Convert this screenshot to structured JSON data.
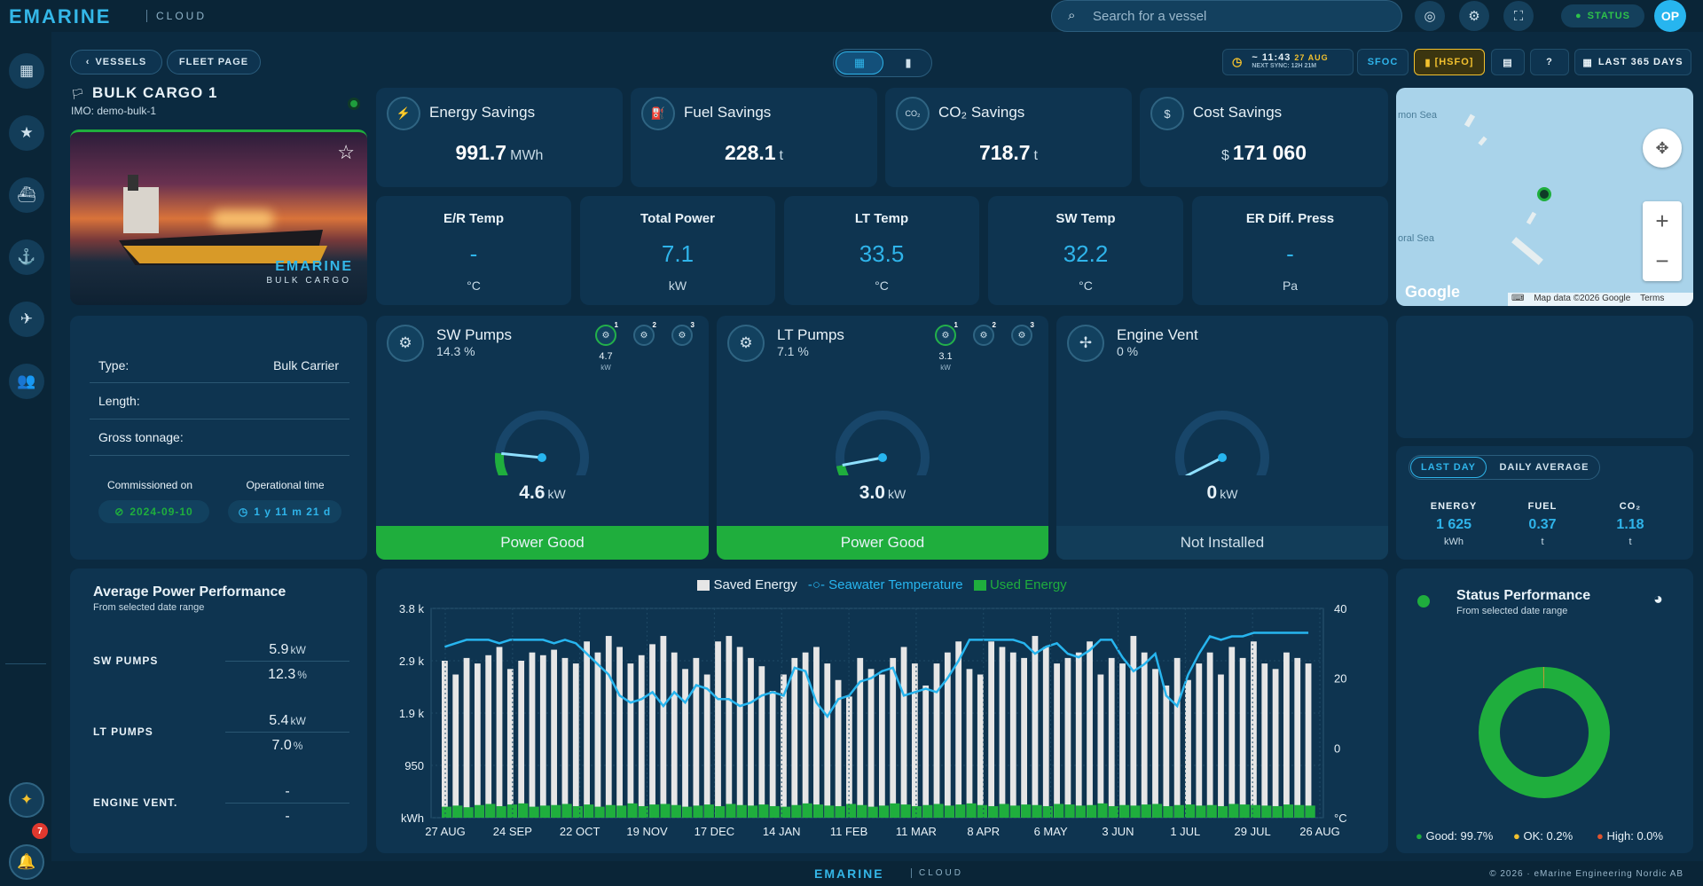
{
  "header": {
    "logo": "EMARINE",
    "logo_sub": "CLOUD",
    "search_placeholder": "Search for a vessel",
    "status_label": "STATUS",
    "avatar_initials": "OP"
  },
  "sidebar": {
    "items": [
      "map-icon",
      "star-icon",
      "ship-icon",
      "anchor-icon",
      "satellite-icon",
      "users-icon"
    ],
    "bottom": [
      "leaf-icon",
      "bell-icon"
    ],
    "notification_count": "7"
  },
  "nav": {
    "vessels_label": "VESSELS",
    "fleet_label": "FLEET PAGE"
  },
  "toolbar": {
    "time": "~ 11:43",
    "date": "27 AUG",
    "next_sync": "NEXT SYNC: 12H 21M",
    "sfoc": "SFOC",
    "fuel": "[HSFO]",
    "help": "?",
    "range": "LAST 365 DAYS"
  },
  "vessel": {
    "name": "BULK CARGO 1",
    "imo": "IMO: demo-bulk-1",
    "image_logo": "EMARINE",
    "image_sub": "BULK CARGO",
    "type_label": "Type:",
    "type_value": "Bulk Carrier",
    "length_label": "Length:",
    "gt_label": "Gross tonnage:",
    "commissioned_label": "Commissioned on",
    "commissioned_value": "2024-09-10",
    "optime_label": "Operational time",
    "optime_value": "1 y 11 m 21 d"
  },
  "savings": [
    {
      "title": "Energy Savings",
      "icon": "energy-icon",
      "glyph": "⚡",
      "value": "991.7",
      "unit": "MWh",
      "prefix": ""
    },
    {
      "title": "Fuel Savings",
      "icon": "fuel-icon",
      "glyph": "⛽",
      "value": "228.1",
      "unit": "t",
      "prefix": ""
    },
    {
      "title": "CO₂ Savings",
      "icon": "co2-icon",
      "glyph": "CO₂",
      "value": "718.7",
      "unit": "t",
      "prefix": ""
    },
    {
      "title": "Cost Savings",
      "icon": "dollar-icon",
      "glyph": "$",
      "value": "171 060",
      "unit": "",
      "prefix": "$"
    }
  ],
  "metrics": [
    {
      "title": "E/R Temp",
      "value": "-",
      "unit": "°C"
    },
    {
      "title": "Total Power",
      "value": "7.1",
      "unit": "kW"
    },
    {
      "title": "LT Temp",
      "value": "33.5",
      "unit": "°C"
    },
    {
      "title": "SW Temp",
      "value": "32.2",
      "unit": "°C"
    },
    {
      "title": "ER Diff. Press",
      "value": "-",
      "unit": "Pa"
    }
  ],
  "map": {
    "label1": "mon Sea",
    "label2": "oral Sea",
    "google": "Google",
    "attribution": "Map data ©2026 Google",
    "terms": "Terms"
  },
  "pumps": [
    {
      "name": "SW Pumps",
      "pct": "14.3 %",
      "value": "4.6",
      "unit": "kW",
      "status": "Power Good",
      "sub_value": "4.7",
      "sub_unit": "kW",
      "gauge_fraction": 0.14
    },
    {
      "name": "LT Pumps",
      "pct": "7.1 %",
      "value": "3.0",
      "unit": "kW",
      "status": "Power Good",
      "sub_value": "3.1",
      "sub_unit": "kW",
      "gauge_fraction": 0.07
    },
    {
      "name": "Engine Vent",
      "pct": "0 %",
      "value": "0",
      "unit": "kW",
      "status": "Not Installed",
      "gauge_fraction": 0.0
    }
  ],
  "day_stats": {
    "tab_last_day": "LAST DAY",
    "tab_daily_avg": "DAILY AVERAGE",
    "energy_label": "ENERGY",
    "energy_value": "1 625",
    "energy_unit": "kWh",
    "fuel_label": "FUEL",
    "fuel_value": "0.37",
    "fuel_unit": "t",
    "co2_label": "CO₂",
    "co2_value": "1.18",
    "co2_unit": "t"
  },
  "avg_perf": {
    "title": "Average Power Performance",
    "subtitle": "From selected date range",
    "sw_label": "SW PUMPS",
    "sw_kw": "5.9",
    "sw_pct": "12.3",
    "lt_label": "LT PUMPS",
    "lt_kw": "5.4",
    "lt_pct": "7.0",
    "ev_label": "ENGINE VENT.",
    "ev_kw": "-",
    "ev_pct": "-",
    "kw_unit": "kW",
    "pct_unit": "%"
  },
  "status_perf": {
    "title": "Status Performance",
    "subtitle": "From selected date range",
    "good": "Good: 99.7%",
    "ok": "OK: 0.2%",
    "high": "High: 0.0%",
    "good_pct": 99.7,
    "ok_pct": 0.2,
    "high_pct": 0.0,
    "colors": {
      "good": "#1fae3d",
      "ok": "#f2c12e",
      "high": "#e0542e"
    }
  },
  "chart_data": {
    "type": "bar",
    "legend": [
      "Saved Energy",
      "Seawater Temperature",
      "Used Energy"
    ],
    "legend_placement": "top",
    "y_left_unit": "kWh",
    "y_right_unit": "°C",
    "y_left_ticks": [
      "3.8 k",
      "2.9 k",
      "1.9 k",
      "950",
      "kWh"
    ],
    "y_right_ticks": [
      "40",
      "20",
      "0",
      "°C"
    ],
    "x_ticks": [
      "27 AUG",
      "24 SEP",
      "22 OCT",
      "19 NOV",
      "17 DEC",
      "14 JAN",
      "11 FEB",
      "11 MAR",
      "8 APR",
      "6 MAY",
      "3 JUN",
      "1 JUL",
      "29 JUL",
      "26 AUG"
    ],
    "ylim_left": [
      0,
      3800
    ],
    "ylim_right": [
      -20,
      40
    ],
    "colors": {
      "saved": "#e6e6e6",
      "temp": "#27b5ef",
      "used": "#1fae3d"
    },
    "grid": true,
    "series": [
      {
        "name": "Saved Energy",
        "values": [
          2850,
          2600,
          2900,
          2800,
          2950,
          3100,
          2700,
          2850,
          3000,
          2950,
          3050,
          2900,
          2800,
          3200,
          3000,
          3300,
          3100,
          2800,
          2950,
          3150,
          3300,
          3000,
          2700,
          2900,
          2600,
          3200,
          3300,
          3100,
          2900,
          2750,
          2300,
          2600,
          2900,
          3000,
          3100,
          2800,
          2500,
          2200,
          2900,
          2700,
          2600,
          2900,
          3100,
          2800,
          2400,
          2800,
          3000,
          3200,
          2700,
          2600,
          3200,
          3100,
          3000,
          2900,
          3300,
          3100,
          2800,
          2900,
          3000,
          3200,
          2600,
          2900,
          2800,
          3300,
          3000,
          2700,
          2400,
          2900,
          2500,
          2800,
          3000,
          2600,
          3100,
          2900,
          3200,
          2800,
          2700,
          3000,
          2900,
          2800
        ]
      },
      {
        "name": "Seawater Temperature",
        "values": [
          29,
          30,
          31,
          31,
          31,
          30,
          31,
          31,
          31,
          31,
          30,
          31,
          30,
          27,
          24,
          21,
          15,
          13,
          14,
          16,
          12,
          16,
          13,
          18,
          17,
          14,
          14,
          12,
          13,
          15,
          16,
          15,
          23,
          22,
          13,
          9,
          14,
          15,
          19,
          20,
          22,
          23,
          15,
          16,
          17,
          16,
          20,
          25,
          31,
          31,
          31,
          31,
          31,
          30,
          27,
          29,
          30,
          27,
          26,
          28,
          31,
          31,
          26,
          22,
          24,
          27,
          15,
          12,
          21,
          27,
          32,
          31,
          32,
          32,
          33,
          33,
          33,
          33,
          33,
          33
        ]
      },
      {
        "name": "Used Energy",
        "values": [
          200,
          220,
          190,
          230,
          250,
          210,
          240,
          260,
          200,
          220,
          230,
          250,
          210,
          240,
          200,
          230,
          220,
          260,
          210,
          240,
          250,
          230,
          200,
          220,
          240,
          210,
          250,
          230,
          220,
          240,
          210,
          200,
          230,
          260,
          240,
          220,
          210,
          250,
          230,
          200,
          220,
          260,
          240,
          210,
          230,
          250,
          220,
          240,
          260,
          230,
          210,
          250,
          220,
          240,
          230,
          210,
          250,
          240,
          220,
          230,
          260,
          210,
          230,
          220,
          240,
          250,
          210,
          230,
          240,
          220,
          230,
          210,
          250,
          240,
          230,
          220,
          210,
          240,
          230,
          220
        ]
      }
    ]
  }
}
